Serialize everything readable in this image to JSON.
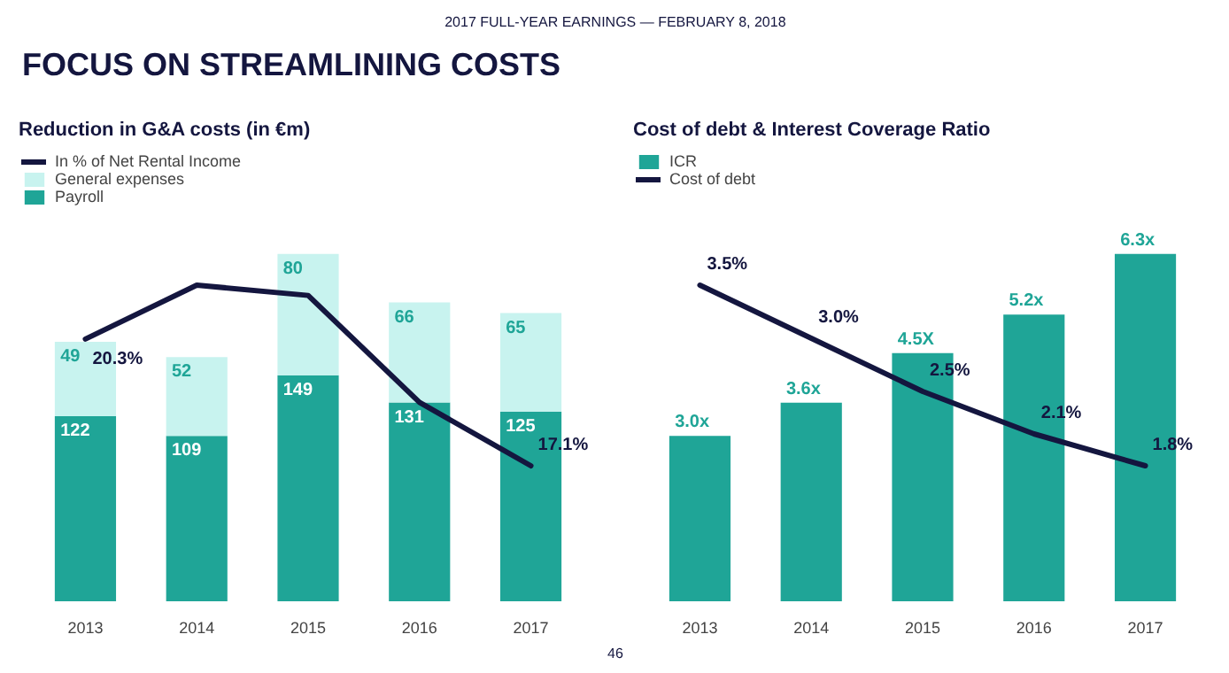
{
  "chart_data": [
    {
      "type": "bar",
      "title": "Reduction in G&A costs (in €m)",
      "annotations": [
        "2017 FULL-YEAR EARNINGS — FEBRUARY 8, 2018",
        "FOCUS ON STREAMLINING COSTS",
        "46"
      ],
      "categories": [
        "2013",
        "2014",
        "2015",
        "2016",
        "2017"
      ],
      "stacked": true,
      "data_labels": true,
      "legend": "top left",
      "tick_labels": "x",
      "series": [
        {
          "name": "Payroll",
          "color": "#1fa597",
          "values": [
            122,
            109,
            149,
            131,
            125
          ]
        },
        {
          "name": "General expenses",
          "color": "#c8f3ef",
          "values": [
            49,
            52,
            80,
            66,
            65
          ]
        },
        {
          "name": "In % of Net Rental Income",
          "type": "line",
          "axis": "y2",
          "color": "#14163f",
          "values": [
            20.3,
            21.66,
            21.4,
            18.7,
            17.1
          ],
          "value_labels": [
            "20.3%",
            null,
            null,
            null,
            "17.1%"
          ]
        }
      ]
    },
    {
      "type": "bar",
      "title": "Cost of debt & Interest Coverage Ratio",
      "categories": [
        "2013",
        "2014",
        "2015",
        "2016",
        "2017"
      ],
      "legend": "top left",
      "tick_labels": "x",
      "series": [
        {
          "name": "ICR",
          "color": "#1fa597",
          "values": [
            3.0,
            3.6,
            4.5,
            5.2,
            6.3
          ],
          "value_labels": [
            "3.0x",
            "3.6x",
            "4.5X",
            "5.2x",
            "6.3x"
          ]
        },
        {
          "name": "Cost of debt",
          "type": "line",
          "axis": "y2",
          "color": "#14163f",
          "values": [
            3.5,
            3.0,
            2.5,
            2.1,
            1.8
          ],
          "value_labels": [
            "3.5%",
            "3.0%",
            "2.5%",
            "2.1%",
            "1.8%"
          ]
        }
      ]
    }
  ]
}
